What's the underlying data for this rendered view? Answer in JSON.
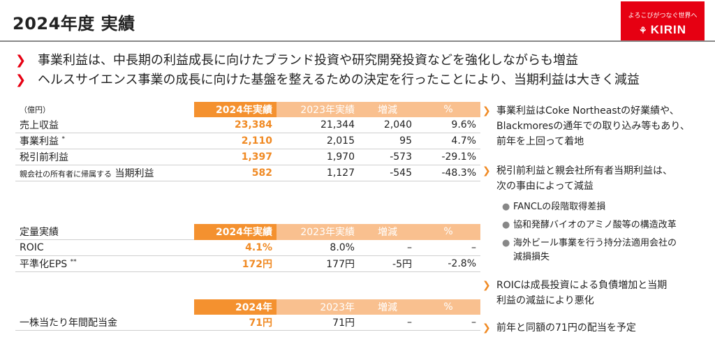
{
  "header": {
    "title": "2024年度 実績"
  },
  "logo": {
    "tagline": "よろこびがつなぐ世界へ",
    "brand": "KIRIN"
  },
  "bullets": [
    "事業利益は、中長期の利益成長に向けたブランド投資や研究開発投資などを強化しながらも増益",
    "ヘルスサイエンス事業の成長に向けた基盤を整えるための決定を行ったことにより、当期利益は大きく減益"
  ],
  "table1": {
    "headers": [
      "（億円）",
      "2024年実績",
      "2023年実績",
      "増減",
      "%"
    ],
    "rows": [
      {
        "label": "売上収益",
        "v2024": "23,384",
        "v2023": "21,344",
        "diff": "2,040",
        "pct": "9.6%"
      },
      {
        "label": "事業利益",
        "mark": "*",
        "v2024": "2,110",
        "v2023": "2,015",
        "diff": "95",
        "pct": "4.7%"
      },
      {
        "label": "税引前利益",
        "v2024": "1,397",
        "v2023": "1,970",
        "diff": "-573",
        "pct": "-29.1%"
      },
      {
        "prefix": "親会社の所有者に帰属する",
        "label": "当期利益",
        "v2024": "582",
        "v2023": "1,127",
        "diff": "-545",
        "pct": "-48.3%"
      }
    ]
  },
  "table2": {
    "headers": [
      "定量実績",
      "2024年実績",
      "2023年実績",
      "増減",
      "%"
    ],
    "rows": [
      {
        "label": "ROIC",
        "v2024": "4.1%",
        "v2023": "8.0%",
        "diff": "–",
        "pct": "–"
      },
      {
        "label": "平準化EPS",
        "mark": "**",
        "v2024": "172円",
        "v2023": "177円",
        "diff": "-5円",
        "pct": "-2.8%"
      }
    ]
  },
  "table3": {
    "headers": [
      "",
      "2024年",
      "2023年",
      "増減",
      "%"
    ],
    "rows": [
      {
        "label": "一株当たり年間配当金",
        "v2024": "71円",
        "v2023": "71円",
        "diff": "–",
        "pct": "–"
      }
    ]
  },
  "right_notes": {
    "n1": [
      "事業利益はCoke Northeastの好業績や、",
      "Blackmoresの通年での取り込み等もあり、",
      "前年を上回って着地"
    ],
    "n2": [
      "税引前利益と親会社所有者当期利益は、",
      "次の事由によって減益"
    ],
    "sub": [
      [
        "FANCLの段階取得差損"
      ],
      [
        "協和発酵バイオのアミノ酸等の構造改革"
      ],
      [
        "海外ビール事業を行う持分法適用会社の",
        "減損損失"
      ]
    ],
    "n3": [
      "ROICは成長投資による負債増加と当期",
      "利益の減益により悪化"
    ],
    "n4": [
      "前年と同額の71円の配当を予定"
    ]
  }
}
